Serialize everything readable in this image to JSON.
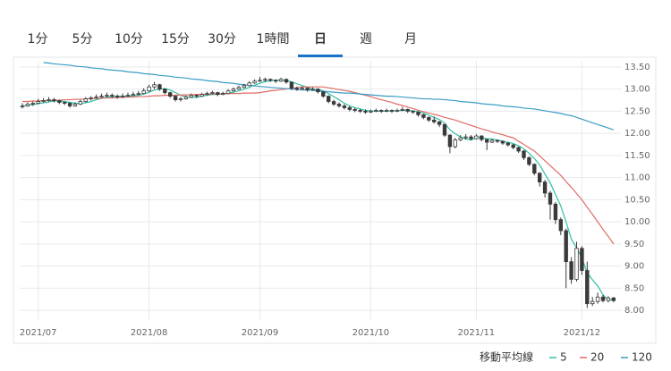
{
  "tabs": [
    "1分",
    "5分",
    "10分",
    "15分",
    "30分",
    "1時間",
    "日",
    "週",
    "月"
  ],
  "active_tab": "日",
  "chart_data": {
    "type": "candlestick",
    "categories": [
      null,
      null,
      null,
      "2021/07",
      null,
      null,
      null,
      null,
      null,
      null,
      null,
      null,
      null,
      null,
      null,
      null,
      null,
      null,
      null,
      null,
      null,
      null,
      null,
      null,
      "2021/08",
      null,
      null,
      null,
      null,
      null,
      null,
      null,
      null,
      null,
      null,
      null,
      null,
      null,
      null,
      null,
      null,
      null,
      null,
      null,
      null,
      "2021/09",
      null,
      null,
      null,
      null,
      null,
      null,
      null,
      null,
      null,
      null,
      null,
      null,
      null,
      null,
      null,
      null,
      null,
      null,
      null,
      null,
      "2021/10",
      null,
      null,
      null,
      null,
      null,
      null,
      null,
      null,
      null,
      null,
      null,
      null,
      null,
      null,
      null,
      null,
      null,
      null,
      null,
      "2021/11",
      null,
      null,
      null,
      null,
      null,
      null,
      null,
      null,
      null,
      null,
      null,
      null,
      null,
      null,
      null,
      null,
      null,
      null,
      null,
      "2021/12",
      null,
      null,
      null,
      null,
      null,
      null
    ],
    "candle_color": "#3a3a3a",
    "candles": [
      [
        12.6,
        12.68,
        12.56,
        12.62
      ],
      [
        12.62,
        12.7,
        12.6,
        12.66
      ],
      [
        12.66,
        12.72,
        12.62,
        12.68
      ],
      [
        12.68,
        12.78,
        12.66,
        12.72
      ],
      [
        12.72,
        12.8,
        12.7,
        12.74
      ],
      [
        12.74,
        12.82,
        12.72,
        12.76
      ],
      [
        12.76,
        12.8,
        12.7,
        12.74
      ],
      [
        12.74,
        12.76,
        12.66,
        12.7
      ],
      [
        12.7,
        12.72,
        12.64,
        12.68
      ],
      [
        12.68,
        12.7,
        12.58,
        12.62
      ],
      [
        12.62,
        12.7,
        12.6,
        12.66
      ],
      [
        12.66,
        12.76,
        12.64,
        12.72
      ],
      [
        12.72,
        12.82,
        12.7,
        12.78
      ],
      [
        12.78,
        12.84,
        12.74,
        12.8
      ],
      [
        12.8,
        12.88,
        12.78,
        12.82
      ],
      [
        12.82,
        12.9,
        12.8,
        12.84
      ],
      [
        12.84,
        12.92,
        12.82,
        12.86
      ],
      [
        12.86,
        12.9,
        12.8,
        12.84
      ],
      [
        12.84,
        12.88,
        12.78,
        12.82
      ],
      [
        12.82,
        12.9,
        12.8,
        12.84
      ],
      [
        12.84,
        12.92,
        12.82,
        12.86
      ],
      [
        12.86,
        12.94,
        12.84,
        12.88
      ],
      [
        12.88,
        12.96,
        12.86,
        12.9
      ],
      [
        12.9,
        13.02,
        12.88,
        12.96
      ],
      [
        12.96,
        13.1,
        12.94,
        13.05
      ],
      [
        13.05,
        13.16,
        13.0,
        13.1
      ],
      [
        13.1,
        13.12,
        12.96,
        13.0
      ],
      [
        13.0,
        13.02,
        12.88,
        12.92
      ],
      [
        12.92,
        12.94,
        12.8,
        12.84
      ],
      [
        12.84,
        12.86,
        12.72,
        12.76
      ],
      [
        12.76,
        12.82,
        12.72,
        12.78
      ],
      [
        12.78,
        12.86,
        12.76,
        12.82
      ],
      [
        12.82,
        12.9,
        12.8,
        12.86
      ],
      [
        12.86,
        12.88,
        12.8,
        12.84
      ],
      [
        12.84,
        12.92,
        12.82,
        12.88
      ],
      [
        12.88,
        12.94,
        12.86,
        12.9
      ],
      [
        12.9,
        12.96,
        12.88,
        12.92
      ],
      [
        12.92,
        12.94,
        12.84,
        12.88
      ],
      [
        12.88,
        12.94,
        12.86,
        12.9
      ],
      [
        12.9,
        13.0,
        12.88,
        12.96
      ],
      [
        12.96,
        13.04,
        12.94,
        13.0
      ],
      [
        13.0,
        13.08,
        12.98,
        13.04
      ],
      [
        13.04,
        13.12,
        13.02,
        13.08
      ],
      [
        13.08,
        13.18,
        13.06,
        13.14
      ],
      [
        13.14,
        13.22,
        13.12,
        13.18
      ],
      [
        13.18,
        13.28,
        13.16,
        13.2
      ],
      [
        13.2,
        13.26,
        13.16,
        13.22
      ],
      [
        13.22,
        13.24,
        13.16,
        13.2
      ],
      [
        13.2,
        13.22,
        13.14,
        13.18
      ],
      [
        13.18,
        13.26,
        13.16,
        13.22
      ],
      [
        13.22,
        13.24,
        13.12,
        13.16
      ],
      [
        13.16,
        13.16,
        12.98,
        13.02
      ],
      [
        13.02,
        13.06,
        12.96,
        13.0
      ],
      [
        13.0,
        13.06,
        12.98,
        13.02
      ],
      [
        13.02,
        13.04,
        12.94,
        12.98
      ],
      [
        12.98,
        13.04,
        12.96,
        13.0
      ],
      [
        13.0,
        13.02,
        12.9,
        12.94
      ],
      [
        12.94,
        12.96,
        12.8,
        12.84
      ],
      [
        12.84,
        12.86,
        12.68,
        12.72
      ],
      [
        12.72,
        12.76,
        12.62,
        12.66
      ],
      [
        12.66,
        12.7,
        12.58,
        12.62
      ],
      [
        12.62,
        12.66,
        12.54,
        12.58
      ],
      [
        12.58,
        12.62,
        12.5,
        12.54
      ],
      [
        12.54,
        12.58,
        12.48,
        12.52
      ],
      [
        12.52,
        12.56,
        12.46,
        12.5
      ],
      [
        12.5,
        12.54,
        12.44,
        12.48
      ],
      [
        12.48,
        12.54,
        12.46,
        12.5
      ],
      [
        12.5,
        12.56,
        12.48,
        12.52
      ],
      [
        12.52,
        12.54,
        12.46,
        12.5
      ],
      [
        12.5,
        12.56,
        12.48,
        12.52
      ],
      [
        12.52,
        12.54,
        12.46,
        12.5
      ],
      [
        12.5,
        12.56,
        12.48,
        12.52
      ],
      [
        12.52,
        12.6,
        12.5,
        12.54
      ],
      [
        12.54,
        12.56,
        12.46,
        12.5
      ],
      [
        12.5,
        12.52,
        12.44,
        12.48
      ],
      [
        12.48,
        12.5,
        12.38,
        12.42
      ],
      [
        12.42,
        12.44,
        12.32,
        12.36
      ],
      [
        12.36,
        12.38,
        12.26,
        12.3
      ],
      [
        12.3,
        12.38,
        12.22,
        12.26
      ],
      [
        12.26,
        12.28,
        12.14,
        12.2
      ],
      [
        12.2,
        12.22,
        11.92,
        11.96
      ],
      [
        11.96,
        11.98,
        11.55,
        11.7
      ],
      [
        11.7,
        11.9,
        11.66,
        11.85
      ],
      [
        11.85,
        11.96,
        11.82,
        11.9
      ],
      [
        11.9,
        11.98,
        11.86,
        11.92
      ],
      [
        11.92,
        11.96,
        11.84,
        11.88
      ],
      [
        11.88,
        11.98,
        11.86,
        11.94
      ],
      [
        11.94,
        11.96,
        11.82,
        11.86
      ],
      [
        11.86,
        11.88,
        11.62,
        11.8
      ],
      [
        11.8,
        11.88,
        11.78,
        11.84
      ],
      [
        11.84,
        11.86,
        11.78,
        11.82
      ],
      [
        11.82,
        11.84,
        11.74,
        11.78
      ],
      [
        11.78,
        11.8,
        11.7,
        11.74
      ],
      [
        11.74,
        11.76,
        11.64,
        11.68
      ],
      [
        11.68,
        11.7,
        11.56,
        11.6
      ],
      [
        11.6,
        11.62,
        11.4,
        11.45
      ],
      [
        11.45,
        11.48,
        11.26,
        11.3
      ],
      [
        11.3,
        11.32,
        11.05,
        11.1
      ],
      [
        11.1,
        11.12,
        10.8,
        10.9
      ],
      [
        10.9,
        10.95,
        10.55,
        10.65
      ],
      [
        10.65,
        10.7,
        10.05,
        10.4
      ],
      [
        10.4,
        10.45,
        9.95,
        10.05
      ],
      [
        10.05,
        10.1,
        9.7,
        9.8
      ],
      [
        9.8,
        9.85,
        8.5,
        9.1
      ],
      [
        9.1,
        9.2,
        8.6,
        8.7
      ],
      [
        8.7,
        9.55,
        8.65,
        9.4
      ],
      [
        9.4,
        9.45,
        8.8,
        8.9
      ],
      [
        8.9,
        9.1,
        8.05,
        8.15
      ],
      [
        8.15,
        8.3,
        8.1,
        8.2
      ],
      [
        8.2,
        8.4,
        8.15,
        8.3
      ],
      [
        8.3,
        8.35,
        8.18,
        8.22
      ],
      [
        8.22,
        8.32,
        8.18,
        8.28
      ],
      [
        8.28,
        8.3,
        8.18,
        8.22
      ]
    ],
    "legend_title": "移動平均線",
    "series": [
      {
        "name": "5",
        "color": "#2fbfa5",
        "values": [
          12.62,
          12.63,
          12.65,
          12.67,
          12.69,
          12.71,
          12.73,
          12.73,
          12.72,
          12.7,
          12.68,
          12.68,
          12.69,
          12.72,
          12.76,
          12.79,
          12.82,
          12.83,
          12.84,
          12.84,
          12.84,
          12.85,
          12.86,
          12.89,
          12.93,
          12.98,
          13.0,
          13.01,
          12.98,
          12.92,
          12.86,
          12.82,
          12.81,
          12.81,
          12.84,
          12.86,
          12.88,
          12.88,
          12.9,
          12.91,
          12.93,
          12.96,
          13.0,
          13.04,
          13.09,
          13.13,
          13.17,
          13.19,
          13.2,
          13.2,
          13.2,
          13.16,
          13.12,
          13.08,
          13.04,
          13.0,
          12.99,
          12.96,
          12.9,
          12.83,
          12.76,
          12.68,
          12.62,
          12.58,
          12.55,
          12.52,
          12.51,
          12.5,
          12.5,
          12.5,
          12.51,
          12.51,
          12.52,
          12.52,
          12.51,
          12.49,
          12.46,
          12.41,
          12.36,
          12.31,
          12.23,
          12.08,
          11.99,
          11.92,
          11.87,
          11.85,
          11.9,
          11.9,
          11.88,
          11.87,
          11.85,
          11.82,
          11.8,
          11.77,
          11.72,
          11.65,
          11.55,
          11.43,
          11.29,
          11.08,
          10.88,
          10.62,
          10.36,
          10.0,
          9.61,
          9.41,
          9.18,
          8.85,
          8.69,
          8.55,
          8.35,
          8.23,
          8.24
        ]
      },
      {
        "name": "20",
        "color": "#e06c64",
        "values": [
          12.72,
          12.72,
          12.73,
          12.73,
          12.74,
          12.74,
          12.75,
          12.75,
          12.76,
          12.76,
          12.77,
          12.77,
          12.78,
          12.78,
          12.79,
          12.79,
          12.8,
          12.8,
          12.81,
          12.81,
          12.82,
          12.82,
          12.83,
          12.83,
          12.84,
          12.85,
          12.85,
          12.86,
          12.86,
          12.86,
          12.87,
          12.87,
          12.87,
          12.88,
          12.88,
          12.88,
          12.89,
          12.89,
          12.89,
          12.9,
          12.9,
          12.9,
          12.91,
          12.91,
          12.91,
          12.92,
          12.94,
          12.96,
          12.97,
          12.99,
          13.0,
          13.02,
          13.03,
          13.05,
          13.05,
          13.05,
          13.05,
          13.05,
          13.03,
          13.01,
          12.99,
          12.97,
          12.95,
          12.92,
          12.89,
          12.86,
          12.83,
          12.79,
          12.76,
          12.73,
          12.7,
          12.66,
          12.63,
          12.59,
          12.56,
          12.52,
          12.49,
          12.46,
          12.43,
          12.4,
          12.36,
          12.33,
          12.3,
          12.26,
          12.22,
          12.18,
          12.14,
          12.1,
          12.07,
          12.03,
          12.0,
          11.97,
          11.93,
          11.9,
          11.82,
          11.75,
          11.67,
          11.6,
          11.49,
          11.38,
          11.27,
          11.16,
          11.05,
          10.91,
          10.78,
          10.64,
          10.5,
          10.33,
          10.17,
          10.0,
          9.83,
          9.67,
          9.5
        ]
      },
      {
        "name": "120",
        "color": "#3a9cc6",
        "values": [
          null,
          null,
          null,
          null,
          13.6,
          13.59,
          13.57,
          13.56,
          13.55,
          13.54,
          13.52,
          13.51,
          13.5,
          13.48,
          13.47,
          13.46,
          13.44,
          13.43,
          13.42,
          13.41,
          13.39,
          13.38,
          13.37,
          13.35,
          13.34,
          13.33,
          13.31,
          13.3,
          13.29,
          13.27,
          13.26,
          13.25,
          13.23,
          13.22,
          13.21,
          13.19,
          13.18,
          13.17,
          13.15,
          13.14,
          13.13,
          13.11,
          13.1,
          13.09,
          13.07,
          13.06,
          13.05,
          13.04,
          13.03,
          13.02,
          13.01,
          13.0,
          12.99,
          12.98,
          12.98,
          12.97,
          12.96,
          12.95,
          12.94,
          12.93,
          12.92,
          12.91,
          12.91,
          12.9,
          12.89,
          12.88,
          12.87,
          12.86,
          12.85,
          12.84,
          12.84,
          12.83,
          12.82,
          12.81,
          12.8,
          12.79,
          12.78,
          12.78,
          12.77,
          12.77,
          12.76,
          12.75,
          12.74,
          12.72,
          12.71,
          12.7,
          12.69,
          12.67,
          12.66,
          12.65,
          12.64,
          12.62,
          12.61,
          12.6,
          12.59,
          12.57,
          12.56,
          12.55,
          12.53,
          12.51,
          12.49,
          12.47,
          12.45,
          12.42,
          12.4,
          12.36,
          12.32,
          12.28,
          12.24,
          12.2,
          12.16,
          12.12,
          12.08
        ]
      }
    ],
    "ylim": [
      7.78,
      13.64
    ],
    "yticks": [
      {
        "value": 8,
        "label": "8.00"
      },
      {
        "value": 8.5,
        "label": "8.50"
      },
      {
        "value": 9,
        "label": "9.00"
      },
      {
        "value": 9.5,
        "label": "9.50"
      },
      {
        "value": 10,
        "label": "10.00"
      },
      {
        "value": 10.5,
        "label": "10.50"
      },
      {
        "value": 11,
        "label": "11.00"
      },
      {
        "value": 11.5,
        "label": "11.50"
      },
      {
        "value": 12,
        "label": "12.00"
      },
      {
        "value": 12.5,
        "label": "12.50"
      },
      {
        "value": 13,
        "label": "13.00"
      },
      {
        "value": 13.5,
        "label": "13.50"
      }
    ],
    "grid": true
  }
}
